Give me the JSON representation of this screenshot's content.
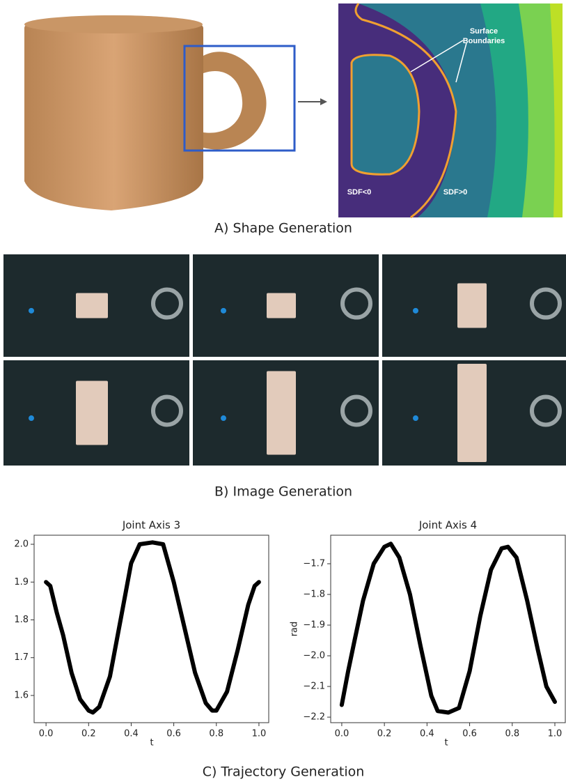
{
  "shape": {
    "caption": "A) Shape Generation",
    "surface_label": [
      "Surface",
      "Boundaries"
    ],
    "inside_label": "SDF<0",
    "outside_label": "SDF>0"
  },
  "images": {
    "caption": "B) Image Generation"
  },
  "trajectory": {
    "caption": "C) Trajectory Generation"
  },
  "chart_data": [
    {
      "type": "line",
      "title": "Joint Axis 3",
      "xlabel": "t",
      "x": [
        0,
        0.02,
        0.05,
        0.08,
        0.12,
        0.16,
        0.2,
        0.22,
        0.25,
        0.3,
        0.35,
        0.4,
        0.44,
        0.5,
        0.55,
        0.6,
        0.65,
        0.7,
        0.75,
        0.78,
        0.8,
        0.85,
        0.9,
        0.95,
        0.98,
        1.0
      ],
      "series": [
        {
          "color": "#000000",
          "values": [
            1.9,
            1.89,
            1.82,
            1.76,
            1.66,
            1.59,
            1.56,
            1.555,
            1.57,
            1.65,
            1.8,
            1.95,
            2.0,
            2.005,
            2.0,
            1.9,
            1.78,
            1.66,
            1.58,
            1.56,
            1.56,
            1.61,
            1.72,
            1.84,
            1.89,
            1.9
          ]
        }
      ],
      "xlim": [
        -0.056,
        1.046
      ],
      "ylim": [
        1.528,
        2.024
      ],
      "xticks": [
        {
          "value": 0,
          "label": "0.0"
        },
        0.2,
        0.4,
        0.6,
        0.8,
        {
          "value": 1,
          "label": "1.0"
        }
      ],
      "yticks": [
        1.6,
        1.7,
        1.8,
        1.9,
        {
          "value": 2,
          "label": "2.0"
        }
      ]
    },
    {
      "type": "line",
      "title": "Joint Axis 4",
      "xlabel": "t",
      "ylabel": "rad",
      "x": [
        0,
        0.03,
        0.06,
        0.1,
        0.15,
        0.2,
        0.23,
        0.27,
        0.32,
        0.37,
        0.42,
        0.45,
        0.5,
        0.55,
        0.6,
        0.65,
        0.7,
        0.75,
        0.78,
        0.82,
        0.87,
        0.92,
        0.96,
        1.0
      ],
      "series": [
        {
          "color": "#000000",
          "values": [
            -2.16,
            -2.05,
            -1.95,
            -1.82,
            -1.7,
            -1.645,
            -1.635,
            -1.68,
            -1.8,
            -1.97,
            -2.13,
            -2.18,
            -2.185,
            -2.17,
            -2.05,
            -1.87,
            -1.72,
            -1.65,
            -1.645,
            -1.68,
            -1.82,
            -1.98,
            -2.1,
            -2.15
          ]
        }
      ],
      "xlim": [
        -0.052,
        1.049
      ],
      "ylim": [
        -2.218,
        -1.607
      ],
      "xticks": [
        {
          "value": 0,
          "label": "0.0"
        },
        0.2,
        0.4,
        0.6,
        0.8,
        {
          "value": 1,
          "label": "1.0"
        }
      ],
      "yticks": [
        {
          "value": -2.2,
          "label": "−2.2"
        },
        {
          "value": -2.1,
          "label": "−2.1"
        },
        {
          "value": -2.0,
          "label": "−2.0"
        },
        {
          "value": -1.9,
          "label": "−1.9"
        },
        {
          "value": -1.8,
          "label": "−1.8"
        },
        {
          "value": -1.7,
          "label": "−1.7"
        }
      ]
    }
  ]
}
